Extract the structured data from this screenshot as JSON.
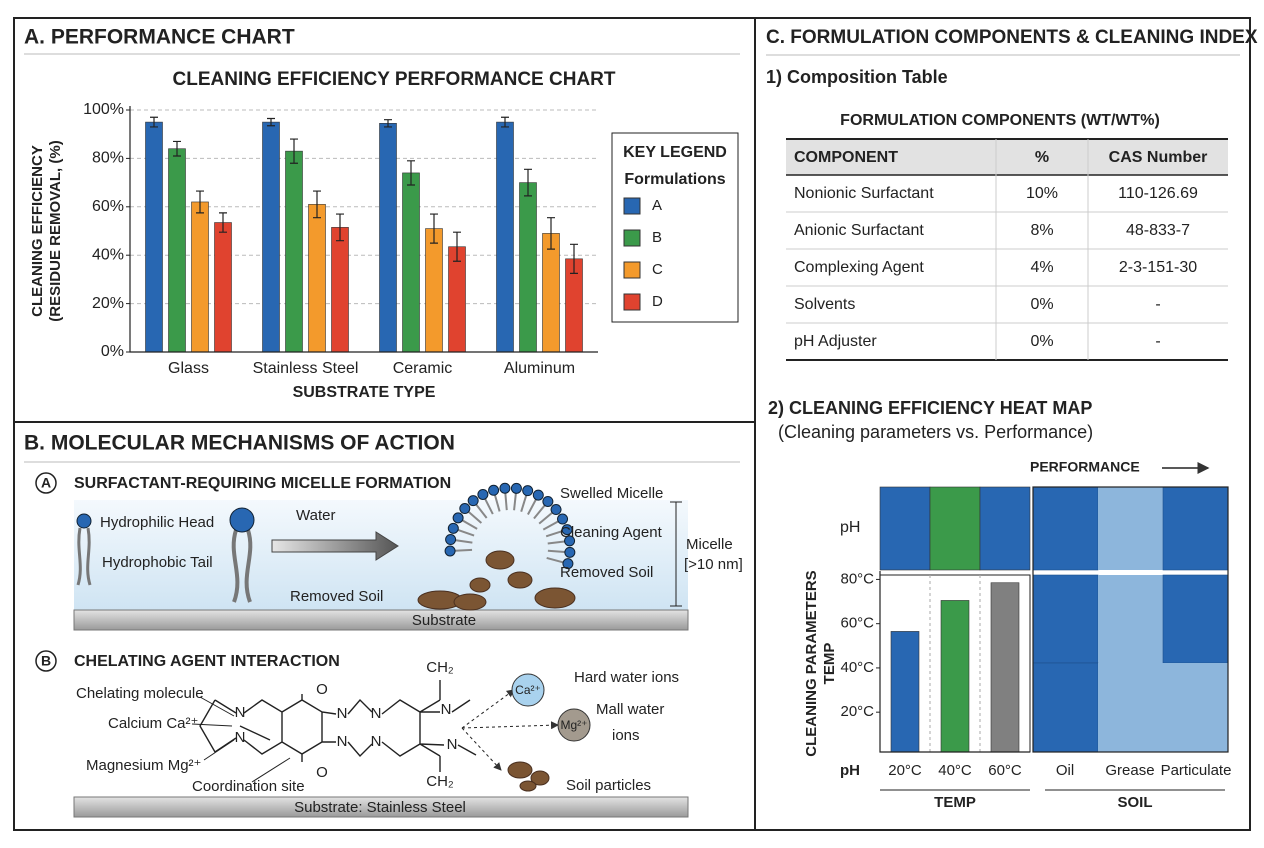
{
  "panel_a": {
    "title": "A. PERFORMANCE CHART"
  },
  "chart_data": [
    {
      "type": "bar",
      "title": "CLEANING EFFICIENCY PERFORMANCE CHART",
      "y_label": [
        "CLEANING EFFICIENCY",
        "(RESIDUE REMOVAL, (%)"
      ],
      "x_label": "SUBSTRATE TYPE",
      "categories": [
        "Glass",
        "Stainless Steel",
        "Ceramic",
        "Aluminum"
      ],
      "series": [
        {
          "name": "A",
          "color": "#2867b2",
          "values": [
            95,
            95,
            94.5,
            95
          ],
          "errors": [
            2,
            1.5,
            1.5,
            2
          ]
        },
        {
          "name": "B",
          "color": "#3b9a4a",
          "values": [
            84,
            83,
            74,
            70
          ],
          "errors": [
            3,
            5,
            5,
            5.5
          ]
        },
        {
          "name": "C",
          "color": "#f39a2c",
          "values": [
            62,
            61,
            51,
            49
          ],
          "errors": [
            4.5,
            5.5,
            6,
            6.5
          ]
        },
        {
          "name": "D",
          "color": "#e0432f",
          "values": [
            53.5,
            51.5,
            43.5,
            38.5
          ],
          "errors": [
            4,
            5.5,
            6,
            6
          ]
        }
      ],
      "ylim": [
        0,
        100
      ],
      "yticks": [
        {
          "value": 0,
          "label": "0%"
        },
        {
          "value": 20,
          "label": "20%"
        },
        {
          "value": 40,
          "label": "40%"
        },
        {
          "value": 60,
          "label": "60%"
        },
        {
          "value": 80,
          "label": "80%"
        },
        {
          "value": 100,
          "label": "100%"
        }
      ],
      "grid": true,
      "legend": {
        "title": "KEY LEGEND",
        "subtitle": "Formulations",
        "position": "right"
      }
    },
    {
      "type": "bar",
      "y_label": [
        "CLEANING PARAMETERS",
        "TEMP"
      ],
      "categories": [
        "20°C",
        "40°C",
        "60°C"
      ],
      "values": [
        56.5,
        70.5,
        78.5
      ],
      "colors": [
        "#2867b2",
        "#3b9a4a",
        "#808080"
      ],
      "ylim": [
        2,
        82
      ],
      "yticks": [
        {
          "value": 20,
          "label": "20°C"
        },
        {
          "value": 40,
          "label": "40°C"
        },
        {
          "value": 60,
          "label": "60°C"
        },
        {
          "value": 80,
          "label": "80°C"
        }
      ],
      "grid": false
    }
  ],
  "panel_b": {
    "title": "B. MOLECULAR MECHANISMS OF ACTION",
    "section_a": {
      "badge": "A",
      "title": "SURFACTANT-REQUIRING MICELLE FORMATION",
      "hydrophilic_head": "Hydrophilic Head",
      "hydrophobic_tail": "Hydrophobic Tail",
      "water": "Water",
      "swelled_micelle": "Swelled Micelle",
      "cleaning_agent": "Cleaning Agent",
      "removed_soil_right": "Removed Soil",
      "removed_soil_left": "Removed Soil",
      "micelle": "Micelle",
      "micelle_size": "[>10 nm]",
      "substrate": "Substrate"
    },
    "section_b": {
      "badge": "B",
      "title": "CHELATING AGENT INTERACTION",
      "chelating_molecule": "Chelating molecule",
      "calcium": "Calcium Ca²⁺",
      "magnesium": "Magnesium Mg²⁺",
      "coordination_site": "Coordination site",
      "hard_water_ions": "Hard water ions",
      "mall_water_ions": [
        "Mall water",
        "ions"
      ],
      "soil_particles": "Soil particles",
      "ca_ion": "Ca²⁺",
      "mg_ion": "Mg²⁺",
      "substrate": "Substrate: Stainless Steel",
      "atoms": [
        "N",
        "N",
        "O",
        "O",
        "N",
        "N",
        "N",
        "N",
        "N",
        "N",
        "CH₂",
        "CH₂"
      ]
    }
  },
  "panel_c": {
    "title": "C. FORMULATION COMPONENTS & CLEANING INDEX",
    "table_heading": "1) Composition Table",
    "table": {
      "title": "FORMULATION COMPONENTS (WT/WT%)",
      "header": [
        "COMPONENT",
        "%",
        "CAS Number"
      ],
      "rows": [
        [
          "Nonionic Surfactant",
          "10%",
          "110-126.69"
        ],
        [
          "Anionic Surfactant",
          "8%",
          "48-833-7"
        ],
        [
          "Complexing Agent",
          "4%",
          "2-3-151-30"
        ],
        [
          "Solvents",
          "0%",
          "-"
        ],
        [
          "pH Adjuster",
          "0%",
          "-"
        ]
      ]
    },
    "heat_map": {
      "title": "2) CLEANING EFFICIENCY HEAT MAP",
      "subtitle": "(Cleaning parameters vs. Performance)",
      "performance_label": "PERFORMANCE",
      "row_label": "pH",
      "bottom_row_label": "pH",
      "soil_categories": [
        "Oil",
        "Grease",
        "Particulate"
      ],
      "group_labels": [
        "TEMP",
        "SOIL"
      ]
    }
  }
}
